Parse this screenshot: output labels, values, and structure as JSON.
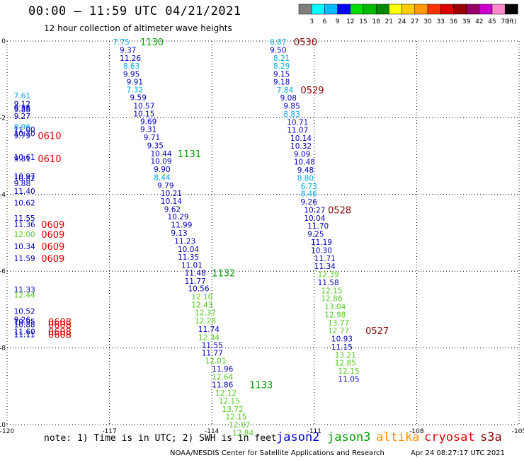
{
  "header": {
    "title": "00:00 – 11:59 UTC 04/21/2021",
    "subtitle": "12 hour collection of altimeter wave heights"
  },
  "footer": {
    "note": "note: 1) Time is in UTC; 2) SWH is in feet",
    "credit": "NOAA/NESDIS Center for Satellite Applications and Research",
    "generated": "Apr 24 08:27:17 UTC 2021"
  },
  "satellites": [
    {
      "name": "jason2",
      "color": "#0000cc"
    },
    {
      "name": "jason3",
      "color": "#00a000"
    },
    {
      "name": "altika",
      "color": "#ff8c00"
    },
    {
      "name": "cryosat",
      "color": "#e00000"
    },
    {
      "name": "s3a",
      "color": "#8b0000"
    }
  ],
  "colorbar": {
    "labels": [
      "3",
      "6",
      "9",
      "12",
      "15",
      "18",
      "21",
      "24",
      "27",
      "30",
      "33",
      "36",
      "39",
      "42",
      "45",
      "70"
    ],
    "unit": "(ft)",
    "colors": [
      "#808080",
      "#00ffff",
      "#00bbff",
      "#0000ff",
      "#00dd00",
      "#00bb00",
      "#008800",
      "#ffff00",
      "#ffcc00",
      "#ff9900",
      "#ff3300",
      "#dd0000",
      "#990000",
      "#990066",
      "#cc00cc",
      "#ff88cc",
      "#000000"
    ]
  },
  "chart_data": {
    "type": "scatter",
    "title": "00:00 – 11:59 UTC 04/21/2021",
    "xlim": [
      -120,
      -105
    ],
    "ylim": [
      -10,
      0
    ],
    "xticks": [
      -120,
      -117,
      -114,
      -111,
      -108,
      -105
    ],
    "yticks": [
      0,
      -2,
      -4,
      -6,
      -8,
      -10
    ],
    "xtick_labels": [
      "-120",
      "-117",
      "-114",
      "-111",
      "-108",
      "-105"
    ],
    "ytick_labels": [
      "0",
      "-2",
      "-4",
      "-6",
      "-8",
      "-10"
    ],
    "grid": true,
    "level_colors": {
      "1": "#00aadd",
      "2": "#0000bb",
      "3": "#55cc22",
      "4": "#ee0000"
    },
    "swh_points": [
      {
        "track": "A",
        "x": -116.9,
        "y": -0.02,
        "v": "7.75",
        "c": 1
      },
      {
        "track": "A",
        "x": -116.7,
        "y": -0.23,
        "v": "9.37",
        "c": 2
      },
      {
        "track": "A",
        "x": -116.7,
        "y": -0.44,
        "v": "11.26",
        "c": 2
      },
      {
        "track": "A",
        "x": -116.6,
        "y": -0.65,
        "v": "8.63",
        "c": 1
      },
      {
        "track": "A",
        "x": -116.6,
        "y": -0.86,
        "v": "9.95",
        "c": 2
      },
      {
        "track": "A",
        "x": -116.5,
        "y": -1.06,
        "v": "9.91",
        "c": 2
      },
      {
        "track": "A",
        "x": -116.5,
        "y": -1.26,
        "v": "7.32",
        "c": 1
      },
      {
        "track": "A",
        "x": -116.4,
        "y": -1.47,
        "v": "9.59",
        "c": 2
      },
      {
        "track": "A",
        "x": -116.3,
        "y": -1.69,
        "v": "10.57",
        "c": 2
      },
      {
        "track": "A",
        "x": -116.3,
        "y": -1.89,
        "v": "10.15",
        "c": 2
      },
      {
        "track": "A",
        "x": -116.1,
        "y": -2.09,
        "v": "9.69",
        "c": 2
      },
      {
        "track": "A",
        "x": -116.1,
        "y": -2.3,
        "v": "9.31",
        "c": 2
      },
      {
        "track": "A",
        "x": -116.0,
        "y": -2.51,
        "v": "9.71",
        "c": 2
      },
      {
        "track": "A",
        "x": -115.9,
        "y": -2.72,
        "v": "9.35",
        "c": 2
      },
      {
        "track": "A",
        "x": -115.8,
        "y": -2.93,
        "v": "10.44",
        "c": 2
      },
      {
        "track": "A",
        "x": -115.8,
        "y": -3.13,
        "v": "10.09",
        "c": 2
      },
      {
        "track": "A",
        "x": -115.7,
        "y": -3.34,
        "v": "9.90",
        "c": 2
      },
      {
        "track": "A",
        "x": -115.7,
        "y": -3.55,
        "v": "8.44",
        "c": 1
      },
      {
        "track": "A",
        "x": -115.6,
        "y": -3.76,
        "v": "9.79",
        "c": 2
      },
      {
        "track": "A",
        "x": -115.5,
        "y": -3.97,
        "v": "10.21",
        "c": 2
      },
      {
        "track": "A",
        "x": -115.5,
        "y": -4.17,
        "v": "10.14",
        "c": 2
      },
      {
        "track": "A",
        "x": -115.4,
        "y": -4.38,
        "v": "9.62",
        "c": 2
      },
      {
        "track": "A",
        "x": -115.3,
        "y": -4.58,
        "v": "10.29",
        "c": 2
      },
      {
        "track": "A",
        "x": -115.2,
        "y": -4.79,
        "v": "11.99",
        "c": 2
      },
      {
        "track": "A",
        "x": -115.2,
        "y": -5.0,
        "v": "9.13",
        "c": 2
      },
      {
        "track": "A",
        "x": -115.1,
        "y": -5.21,
        "v": "11.23",
        "c": 2
      },
      {
        "track": "A",
        "x": -115.0,
        "y": -5.42,
        "v": "10.04",
        "c": 2
      },
      {
        "track": "A",
        "x": -115.0,
        "y": -5.63,
        "v": "11.35",
        "c": 2
      },
      {
        "track": "A",
        "x": -114.9,
        "y": -5.84,
        "v": "11.01",
        "c": 2
      },
      {
        "track": "A",
        "x": -114.8,
        "y": -6.04,
        "v": "11.48",
        "c": 2
      },
      {
        "track": "A",
        "x": -114.8,
        "y": -6.25,
        "v": "11.77",
        "c": 2
      },
      {
        "track": "A",
        "x": -114.7,
        "y": -6.45,
        "v": "10.56",
        "c": 2
      },
      {
        "track": "A",
        "x": -114.6,
        "y": -6.66,
        "v": "12.10",
        "c": 3
      },
      {
        "track": "A",
        "x": -114.6,
        "y": -6.87,
        "v": "12.43",
        "c": 3
      },
      {
        "track": "A",
        "x": -114.5,
        "y": -7.08,
        "v": "12.37",
        "c": 3
      },
      {
        "track": "A",
        "x": -114.5,
        "y": -7.29,
        "v": "12.28",
        "c": 3
      },
      {
        "track": "A",
        "x": -114.4,
        "y": -7.51,
        "v": "11.74",
        "c": 2
      },
      {
        "track": "A",
        "x": -114.4,
        "y": -7.72,
        "v": "12.34",
        "c": 3
      },
      {
        "track": "A",
        "x": -114.3,
        "y": -7.92,
        "v": "11.55",
        "c": 2
      },
      {
        "track": "A",
        "x": -114.3,
        "y": -8.13,
        "v": "11.77",
        "c": 2
      },
      {
        "track": "A",
        "x": -114.2,
        "y": -8.33,
        "v": "12.01",
        "c": 3
      },
      {
        "track": "A",
        "x": -114.0,
        "y": -8.54,
        "v": "11.96",
        "c": 2
      },
      {
        "track": "A",
        "x": -114.0,
        "y": -8.75,
        "v": "12.64",
        "c": 3
      },
      {
        "track": "A",
        "x": -114.0,
        "y": -8.96,
        "v": "11.86",
        "c": 2
      },
      {
        "track": "A",
        "x": -113.9,
        "y": -9.17,
        "v": "12.12",
        "c": 3
      },
      {
        "track": "A",
        "x": -113.8,
        "y": -9.38,
        "v": "12.15",
        "c": 3
      },
      {
        "track": "A",
        "x": -113.7,
        "y": -9.59,
        "v": "13.72",
        "c": 3
      },
      {
        "track": "A",
        "x": -113.6,
        "y": -9.79,
        "v": "12.15",
        "c": 3
      },
      {
        "track": "A",
        "x": -113.5,
        "y": -10.0,
        "v": "12.07",
        "c": 3
      },
      {
        "track": "A",
        "x": -113.4,
        "y": -10.21,
        "v": "12.84",
        "c": 3
      },
      {
        "track": "B",
        "x": -112.3,
        "y": -0.02,
        "v": "6.87",
        "c": 1
      },
      {
        "track": "B",
        "x": -112.3,
        "y": -0.23,
        "v": "9.50",
        "c": 2
      },
      {
        "track": "B",
        "x": -112.2,
        "y": -0.44,
        "v": "8.21",
        "c": 1
      },
      {
        "track": "B",
        "x": -112.2,
        "y": -0.65,
        "v": "8.29",
        "c": 1
      },
      {
        "track": "B",
        "x": -112.2,
        "y": -0.86,
        "v": "9.15",
        "c": 2
      },
      {
        "track": "B",
        "x": -112.2,
        "y": -1.06,
        "v": "9.18",
        "c": 2
      },
      {
        "track": "B",
        "x": -112.1,
        "y": -1.27,
        "v": "7.84",
        "c": 1
      },
      {
        "track": "B",
        "x": -112.0,
        "y": -1.48,
        "v": "9.08",
        "c": 2
      },
      {
        "track": "B",
        "x": -111.9,
        "y": -1.69,
        "v": "9.85",
        "c": 2
      },
      {
        "track": "B",
        "x": -111.9,
        "y": -1.9,
        "v": "8.83",
        "c": 1
      },
      {
        "track": "B",
        "x": -111.8,
        "y": -2.11,
        "v": "10.71",
        "c": 2
      },
      {
        "track": "B",
        "x": -111.8,
        "y": -2.32,
        "v": "11.07",
        "c": 2
      },
      {
        "track": "B",
        "x": -111.7,
        "y": -2.53,
        "v": "10.14",
        "c": 2
      },
      {
        "track": "B",
        "x": -111.7,
        "y": -2.73,
        "v": "10.32",
        "c": 2
      },
      {
        "track": "B",
        "x": -111.6,
        "y": -2.94,
        "v": "9.09",
        "c": 2
      },
      {
        "track": "B",
        "x": -111.6,
        "y": -3.15,
        "v": "10.48",
        "c": 2
      },
      {
        "track": "B",
        "x": -111.5,
        "y": -3.36,
        "v": "9.48",
        "c": 2
      },
      {
        "track": "B",
        "x": -111.5,
        "y": -3.57,
        "v": "8.80",
        "c": 1
      },
      {
        "track": "B",
        "x": -111.4,
        "y": -3.78,
        "v": "6.73",
        "c": 1
      },
      {
        "track": "B",
        "x": -111.4,
        "y": -3.98,
        "v": "8.46",
        "c": 1
      },
      {
        "track": "B",
        "x": -111.4,
        "y": -4.19,
        "v": "9.26",
        "c": 2
      },
      {
        "track": "B",
        "x": -111.3,
        "y": -4.4,
        "v": "10.27",
        "c": 2
      },
      {
        "track": "B",
        "x": -111.3,
        "y": -4.61,
        "v": "10.04",
        "c": 2
      },
      {
        "track": "B",
        "x": -111.2,
        "y": -4.82,
        "v": "11.70",
        "c": 2
      },
      {
        "track": "B",
        "x": -111.2,
        "y": -5.03,
        "v": "9.25",
        "c": 2
      },
      {
        "track": "B",
        "x": -111.1,
        "y": -5.24,
        "v": "11.19",
        "c": 2
      },
      {
        "track": "B",
        "x": -111.1,
        "y": -5.45,
        "v": "10.30",
        "c": 2
      },
      {
        "track": "B",
        "x": -111.0,
        "y": -5.66,
        "v": "11.71",
        "c": 2
      },
      {
        "track": "B",
        "x": -111.0,
        "y": -5.87,
        "v": "11.34",
        "c": 2
      },
      {
        "track": "B",
        "x": -110.9,
        "y": -6.08,
        "v": "12.39",
        "c": 3
      },
      {
        "track": "B",
        "x": -110.9,
        "y": -6.29,
        "v": "11.58",
        "c": 2
      },
      {
        "track": "B",
        "x": -110.8,
        "y": -6.5,
        "v": "12.15",
        "c": 3
      },
      {
        "track": "B",
        "x": -110.8,
        "y": -6.71,
        "v": "12.86",
        "c": 3
      },
      {
        "track": "B",
        "x": -110.7,
        "y": -6.92,
        "v": "13.04",
        "c": 3
      },
      {
        "track": "B",
        "x": -110.7,
        "y": -7.13,
        "v": "12.98",
        "c": 3
      },
      {
        "track": "B",
        "x": -110.6,
        "y": -7.34,
        "v": "13.77",
        "c": 3
      },
      {
        "track": "B",
        "x": -110.6,
        "y": -7.55,
        "v": "12.77",
        "c": 3
      },
      {
        "track": "B",
        "x": -110.5,
        "y": -7.76,
        "v": "10.93",
        "c": 2
      },
      {
        "track": "B",
        "x": -110.5,
        "y": -7.97,
        "v": "11.15",
        "c": 2
      },
      {
        "track": "B",
        "x": -110.4,
        "y": -8.18,
        "v": "13.21",
        "c": 3
      },
      {
        "track": "B",
        "x": -110.4,
        "y": -8.39,
        "v": "12.85",
        "c": 3
      },
      {
        "track": "B",
        "x": -110.3,
        "y": -8.6,
        "v": "12.15",
        "c": 3
      },
      {
        "track": "B",
        "x": -110.3,
        "y": -8.81,
        "v": "11.05",
        "c": 2
      },
      {
        "track": "C",
        "x": -119.8,
        "y": -1.42,
        "v": "7.61",
        "c": 1
      },
      {
        "track": "C",
        "x": -119.8,
        "y": -1.63,
        "v": "9.12",
        "c": 2
      },
      {
        "track": "C",
        "x": -119.8,
        "y": -1.74,
        "v": "9.36",
        "c": 2
      },
      {
        "track": "C",
        "x": -119.8,
        "y": -1.78,
        "v": "9.88",
        "c": 2
      },
      {
        "track": "C",
        "x": -119.8,
        "y": -1.96,
        "v": "9.27",
        "c": 2
      },
      {
        "track": "C",
        "x": -119.8,
        "y": -2.23,
        "v": "8.96",
        "c": 1
      },
      {
        "track": "C",
        "x": -119.8,
        "y": -2.31,
        "v": "11.00",
        "c": 2
      },
      {
        "track": "C",
        "x": -119.8,
        "y": -2.41,
        "v": "10.70",
        "c": 2
      },
      {
        "track": "C",
        "x": -119.8,
        "y": -2.46,
        "v": "9.79",
        "c": 2
      },
      {
        "track": "C",
        "x": -119.8,
        "y": -3.03,
        "v": "10.61",
        "c": 2
      },
      {
        "track": "C",
        "x": -119.8,
        "y": -3.06,
        "v": "9.81",
        "c": 2
      },
      {
        "track": "C",
        "x": -119.8,
        "y": -3.52,
        "v": "10.97",
        "c": 2
      },
      {
        "track": "C",
        "x": -119.8,
        "y": -3.58,
        "v": "10.82",
        "c": 2
      },
      {
        "track": "C",
        "x": -119.8,
        "y": -3.71,
        "v": "9.88",
        "c": 2
      },
      {
        "track": "C",
        "x": -119.8,
        "y": -3.91,
        "v": "11.40",
        "c": 2
      },
      {
        "track": "C",
        "x": -119.8,
        "y": -4.22,
        "v": "10.62",
        "c": 2
      },
      {
        "track": "C",
        "x": -119.8,
        "y": -4.61,
        "v": "11.55",
        "c": 2
      },
      {
        "track": "C",
        "x": -119.8,
        "y": -4.78,
        "v": "11.36",
        "c": 2
      },
      {
        "track": "C",
        "x": -119.8,
        "y": -5.04,
        "v": "12.00",
        "c": 3
      },
      {
        "track": "C",
        "x": -119.8,
        "y": -5.35,
        "v": "10.34",
        "c": 2
      },
      {
        "track": "C",
        "x": -119.8,
        "y": -5.66,
        "v": "11.59",
        "c": 2
      },
      {
        "track": "C",
        "x": -119.8,
        "y": -6.48,
        "v": "11.33",
        "c": 2
      },
      {
        "track": "C",
        "x": -119.8,
        "y": -6.61,
        "v": "12.44",
        "c": 3
      },
      {
        "track": "C",
        "x": -119.8,
        "y": -7.04,
        "v": "10.52",
        "c": 2
      },
      {
        "track": "C",
        "x": -119.8,
        "y": -7.26,
        "v": "9.26",
        "c": 2
      },
      {
        "track": "C",
        "x": -119.8,
        "y": -7.32,
        "v": "10.95",
        "c": 2
      },
      {
        "track": "C",
        "x": -119.8,
        "y": -7.39,
        "v": "10.88",
        "c": 2
      },
      {
        "track": "C",
        "x": -119.8,
        "y": -7.57,
        "v": "11.60",
        "c": 2
      },
      {
        "track": "C",
        "x": -119.8,
        "y": -7.65,
        "v": "11.11",
        "c": 2
      }
    ],
    "time_labels": [
      {
        "x": -116.1,
        "y": -0.02,
        "t": "1130",
        "sat": "jason3"
      },
      {
        "x": -115.0,
        "y": -2.93,
        "t": "1131",
        "sat": "jason3"
      },
      {
        "x": -114.0,
        "y": -6.04,
        "t": "1132",
        "sat": "jason3"
      },
      {
        "x": -112.9,
        "y": -8.96,
        "t": "1133",
        "sat": "jason3"
      },
      {
        "x": -111.6,
        "y": -0.02,
        "t": "0530",
        "sat": "s3a"
      },
      {
        "x": -111.4,
        "y": -1.27,
        "t": "0529",
        "sat": "s3a"
      },
      {
        "x": -110.6,
        "y": -4.4,
        "t": "0528",
        "sat": "s3a"
      },
      {
        "x": -109.5,
        "y": -7.55,
        "t": "0527",
        "sat": "s3a"
      },
      {
        "x": -119.1,
        "y": -2.46,
        "t": "0610",
        "sat": "cryosat"
      },
      {
        "x": -119.1,
        "y": -3.06,
        "t": "0610",
        "sat": "cryosat"
      },
      {
        "x": -119.0,
        "y": -4.78,
        "t": "0609",
        "sat": "cryosat"
      },
      {
        "x": -119.0,
        "y": -5.04,
        "t": "0609",
        "sat": "cryosat"
      },
      {
        "x": -119.0,
        "y": -5.35,
        "t": "0609",
        "sat": "cryosat"
      },
      {
        "x": -119.0,
        "y": -5.66,
        "t": "0609",
        "sat": "cryosat"
      },
      {
        "x": -118.8,
        "y": -7.32,
        "t": "0608",
        "sat": "cryosat"
      },
      {
        "x": -118.8,
        "y": -7.39,
        "t": "0608",
        "sat": "cryosat"
      },
      {
        "x": -118.8,
        "y": -7.57,
        "t": "0608",
        "sat": "cryosat"
      },
      {
        "x": -118.8,
        "y": -7.65,
        "t": "0608",
        "sat": "cryosat"
      }
    ]
  }
}
